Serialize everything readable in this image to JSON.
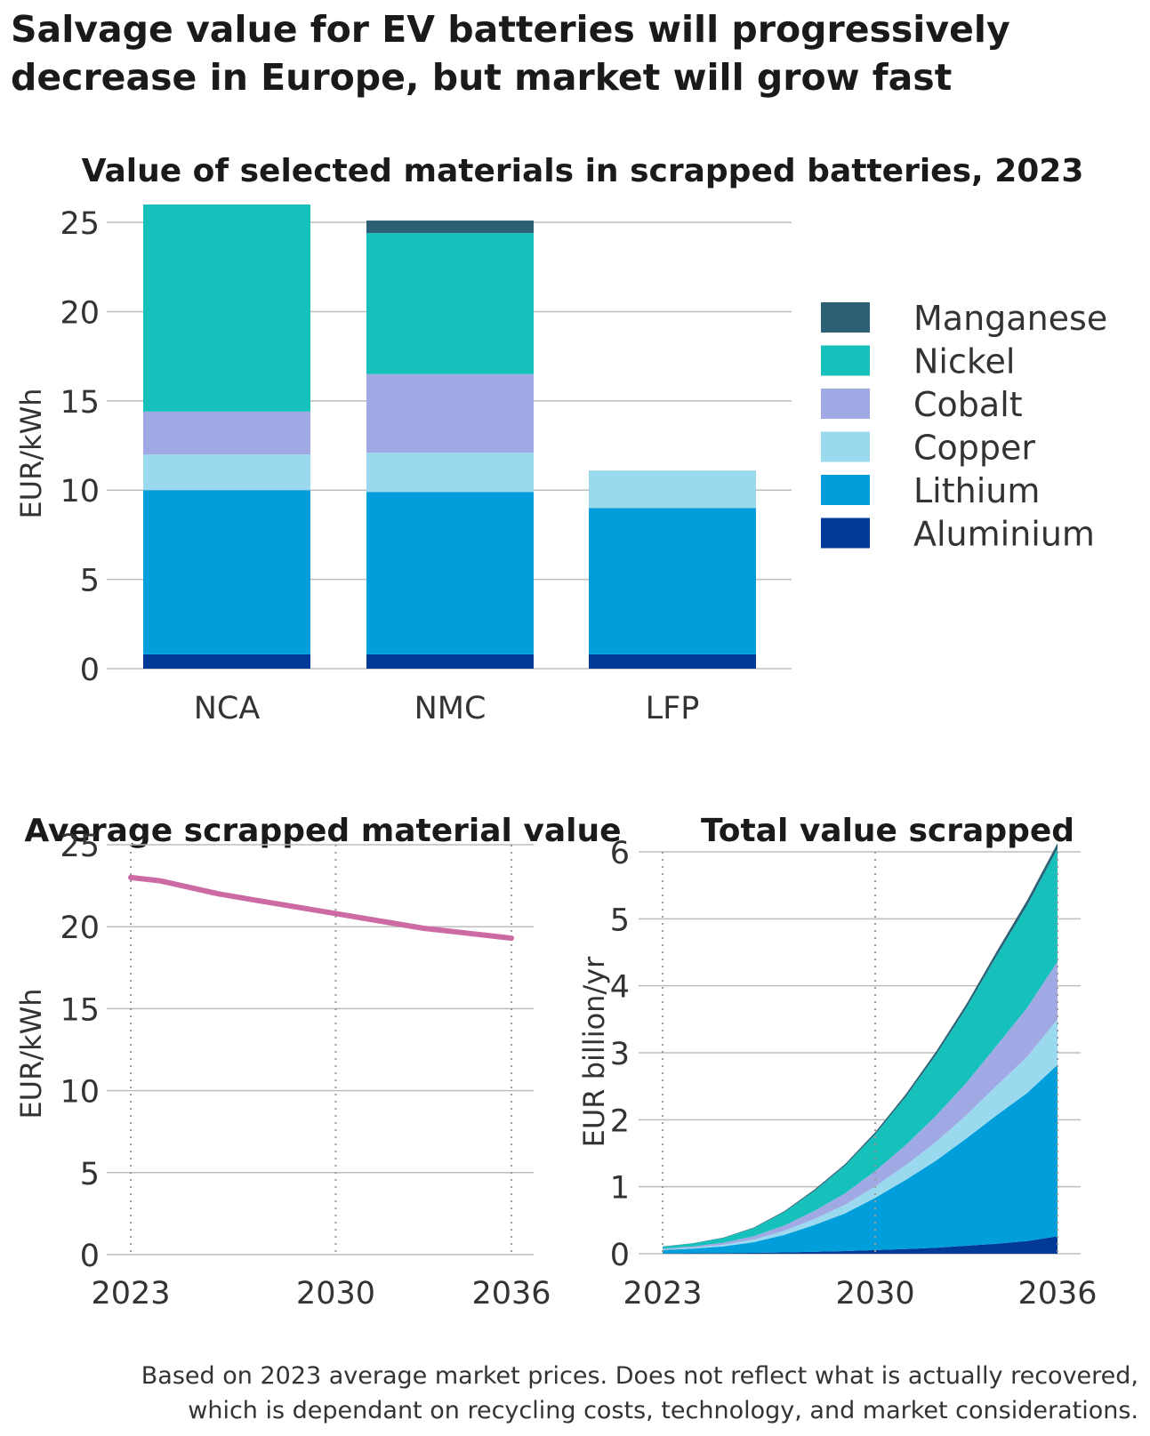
{
  "title": {
    "line1": "Salvage value for EV batteries will progressively",
    "line2": "decrease in Europe, but market will grow fast"
  },
  "colors": {
    "Manganese": "#2c6075",
    "Nickel": "#17c1bb",
    "Cobalt": "#a0a9e3",
    "Copper": "#9bd9ef",
    "Lithium": "#009fdb",
    "Aluminium": "#003a96",
    "line": "#cc6aa4",
    "grid": "#bdbdbd"
  },
  "chart_data": [
    {
      "type": "bar",
      "stacked": true,
      "title": "Value of selected materials in scrapped batteries, 2023",
      "ylabel": "EUR/kWh",
      "xlabel": "",
      "ylim": [
        0,
        26
      ],
      "yticks": [
        0,
        5,
        10,
        15,
        20,
        25
      ],
      "categories": [
        "NCA",
        "NMC",
        "LFP"
      ],
      "series": [
        {
          "name": "Aluminium",
          "values": [
            0.8,
            0.8,
            0.8
          ]
        },
        {
          "name": "Lithium",
          "values": [
            9.2,
            9.1,
            8.2
          ]
        },
        {
          "name": "Copper",
          "values": [
            2.0,
            2.2,
            2.1
          ]
        },
        {
          "name": "Cobalt",
          "values": [
            2.4,
            4.4,
            0
          ]
        },
        {
          "name": "Nickel",
          "values": [
            11.6,
            7.9,
            0
          ]
        },
        {
          "name": "Manganese",
          "values": [
            0,
            0.7,
            0
          ]
        }
      ],
      "legend": [
        "Manganese",
        "Nickel",
        "Cobalt",
        "Copper",
        "Lithium",
        "Aluminium"
      ],
      "legend_position": "right"
    },
    {
      "type": "line",
      "title": "Average scrapped material value",
      "ylabel": "EUR/kWh",
      "ylim": [
        0,
        25
      ],
      "yticks": [
        0,
        5,
        10,
        15,
        20,
        25
      ],
      "xticks": [
        2023,
        2030,
        2036
      ],
      "series": [
        {
          "name": "Average",
          "x": [
            2023,
            2024,
            2025,
            2026,
            2027,
            2028,
            2029,
            2030,
            2031,
            2032,
            2033,
            2034,
            2035,
            2036
          ],
          "values": [
            23.0,
            22.8,
            22.4,
            22.0,
            21.7,
            21.4,
            21.1,
            20.8,
            20.5,
            20.2,
            19.9,
            19.7,
            19.5,
            19.3
          ]
        }
      ]
    },
    {
      "type": "area",
      "stacked": true,
      "title": "Total value scrapped",
      "ylabel": "EUR billion/yr",
      "ylim": [
        0,
        6
      ],
      "yticks": [
        0,
        1,
        2,
        3,
        4,
        5,
        6
      ],
      "xticks": [
        2023,
        2030,
        2036
      ],
      "x": [
        2023,
        2024,
        2025,
        2026,
        2027,
        2028,
        2029,
        2030,
        2031,
        2032,
        2033,
        2034,
        2035,
        2036
      ],
      "series": [
        {
          "name": "Aluminium",
          "values": [
            0.004,
            0.006,
            0.009,
            0.013,
            0.02,
            0.03,
            0.04,
            0.055,
            0.07,
            0.09,
            0.12,
            0.15,
            0.19,
            0.26
          ]
        },
        {
          "name": "Lithium",
          "values": [
            0.05,
            0.07,
            0.1,
            0.16,
            0.26,
            0.4,
            0.56,
            0.78,
            1.03,
            1.3,
            1.6,
            1.92,
            2.21,
            2.56
          ]
        },
        {
          "name": "Copper",
          "values": [
            0.01,
            0.015,
            0.025,
            0.04,
            0.06,
            0.09,
            0.13,
            0.17,
            0.22,
            0.28,
            0.35,
            0.44,
            0.54,
            0.68
          ]
        },
        {
          "name": "Cobalt",
          "values": [
            0.012,
            0.018,
            0.03,
            0.05,
            0.08,
            0.12,
            0.17,
            0.23,
            0.3,
            0.39,
            0.48,
            0.6,
            0.73,
            0.86
          ]
        },
        {
          "name": "Nickel",
          "values": [
            0.03,
            0.045,
            0.07,
            0.12,
            0.2,
            0.3,
            0.41,
            0.55,
            0.72,
            0.91,
            1.12,
            1.34,
            1.53,
            1.69
          ]
        },
        {
          "name": "Manganese",
          "values": [
            0.003,
            0.004,
            0.006,
            0.009,
            0.013,
            0.018,
            0.024,
            0.03,
            0.038,
            0.046,
            0.055,
            0.065,
            0.075,
            0.08
          ]
        }
      ]
    }
  ],
  "footnote": {
    "line1": "Based on 2023 average market prices. Does not reflect what is actually recovered,",
    "line2": "which is dependant on recycling costs, technology, and market considerations."
  }
}
